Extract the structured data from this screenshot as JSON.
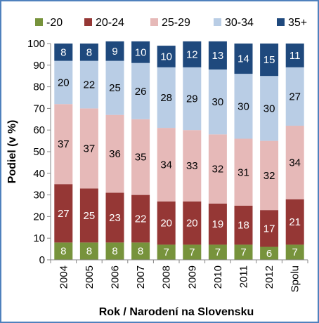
{
  "chart_data": {
    "type": "bar",
    "stacked": true,
    "percent_stacked": true,
    "title": "",
    "xlabel": "Rok / Narodení na Slovensku",
    "ylabel": "Podiel (v %)",
    "ylim": [
      0,
      100
    ],
    "yticks": [
      "0",
      "10",
      "20",
      "30",
      "40",
      "50",
      "60",
      "70",
      "80",
      "90",
      "100"
    ],
    "categories": [
      "2004",
      "2005",
      "2006",
      "2007",
      "2008",
      "2009",
      "2010",
      "2011",
      "2012",
      "Spolu"
    ],
    "series": [
      {
        "name": "-20",
        "color": "#77933c",
        "label_color": "#ffffff",
        "values": [
          8,
          8,
          8,
          8,
          7,
          7,
          7,
          7,
          6,
          7
        ]
      },
      {
        "name": "20-24",
        "color": "#953735",
        "label_color": "#ffffff",
        "values": [
          27,
          25,
          23,
          22,
          20,
          20,
          19,
          18,
          17,
          21
        ]
      },
      {
        "name": "25-29",
        "color": "#e6b9b8",
        "label_color": "#000000",
        "values": [
          37,
          37,
          36,
          35,
          34,
          33,
          32,
          31,
          32,
          34
        ]
      },
      {
        "name": "30-34",
        "color": "#b9cde5",
        "label_color": "#000000",
        "values": [
          20,
          22,
          25,
          26,
          28,
          29,
          30,
          30,
          30,
          27
        ]
      },
      {
        "name": "35+",
        "color": "#1f497d",
        "label_color": "#ffffff",
        "values": [
          8,
          8,
          9,
          10,
          10,
          12,
          13,
          14,
          15,
          11
        ]
      }
    ],
    "legend_position": "top",
    "grid": false
  }
}
